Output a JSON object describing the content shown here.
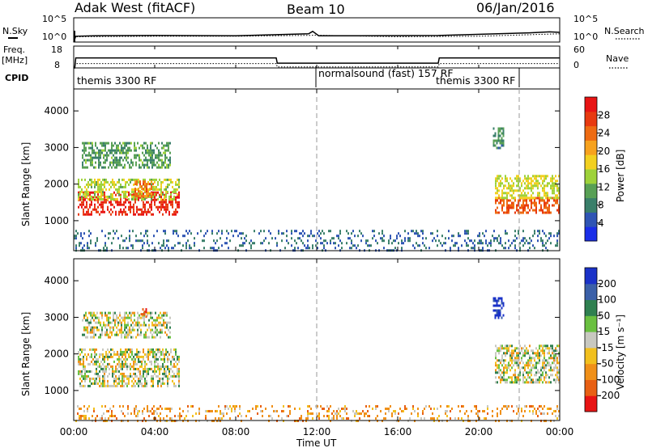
{
  "header": {
    "radar": "Adak West (fitACF)",
    "beam": "Beam 10",
    "date": "06/Jan/2016"
  },
  "sky_panel": {
    "left_label": "N.Sky",
    "right_label": "N.Search",
    "left_ticks": [
      "10^5",
      "10^0"
    ],
    "right_ticks": [
      "10^5",
      "10^0"
    ]
  },
  "freq_panel": {
    "left_label_line1": "Freq.",
    "left_label_line2": "[MHz]",
    "right_label": "Nave",
    "left_ticks": [
      "18",
      "8"
    ],
    "right_ticks": [
      "60",
      "0"
    ]
  },
  "cpid_panel": {
    "label": "CPID",
    "segments": [
      {
        "name": "themis 3300 RF",
        "start_hour": 0,
        "end_hour": 12
      },
      {
        "name": "normalsound (fast) 157 RF",
        "start_hour": 12,
        "end_hour": 18
      },
      {
        "name": "themis 3300 RF",
        "start_hour": 18,
        "end_hour": 24
      }
    ]
  },
  "power_panel": {
    "ylabel": "Slant Range [km]",
    "colorbar_label": "Power [dB]",
    "colorbar_ticks": [
      "28",
      "24",
      "20",
      "16",
      "12",
      "8",
      "4"
    ]
  },
  "velocity_panel": {
    "ylabel": "Slant Range [km]",
    "colorbar_label": "Velocity [m s⁻¹]",
    "colorbar_ticks": [
      "200",
      "100",
      "50",
      "15",
      "-15",
      "-50",
      "-100",
      "-200"
    ]
  },
  "x_axis": {
    "label": "Time UT",
    "ticks": [
      "00:00",
      "04:00",
      "08:00",
      "12:00",
      "16:00",
      "20:00",
      "00:00"
    ]
  },
  "colors": {
    "power_scale": [
      "#1a2ee8",
      "#2f55b4",
      "#3a7f6a",
      "#58a055",
      "#9ed23a",
      "#f2d020",
      "#f7a21e",
      "#ee6b12",
      "#e83a10",
      "#e81414"
    ],
    "velocity_scale": [
      "#1a32c8",
      "#3b60a8",
      "#2f8050",
      "#6ac040",
      "#c8c8c0",
      "#f2c01e",
      "#f09018",
      "#e86014",
      "#e81414"
    ]
  },
  "chart_data": [
    {
      "type": "line",
      "title": "Adak West (fitACF)",
      "description_panel": "N.Sky / N.Search",
      "x_range_hours": [
        0,
        24
      ],
      "series": [
        {
          "name": "N.Sky",
          "x": [
            0,
            0.1,
            1,
            4,
            8,
            11.6,
            11.8,
            12.1,
            14,
            18,
            22.5,
            23.5,
            24
          ],
          "y_log10": [
            0,
            1.2,
            1.3,
            1.35,
            1.3,
            1.7,
            2.2,
            1.3,
            1.3,
            1.35,
            1.9,
            2.1,
            2.0
          ]
        },
        {
          "name": "N.Search",
          "x": [
            0,
            4,
            8,
            12,
            16,
            20,
            24
          ],
          "y_log10": [
            1.1,
            1.2,
            1.2,
            1.4,
            1.1,
            1.2,
            1.7
          ]
        }
      ]
    },
    {
      "type": "line",
      "description_panel": "Freq. [MHz] / Nave",
      "x_range_hours": [
        0,
        24
      ],
      "ylim_freq": [
        8,
        18
      ],
      "ylim_nave": [
        0,
        60
      ],
      "series": [
        {
          "name": "Freq.",
          "x": [
            0,
            0.05,
            0.1,
            10.0,
            10.05,
            18.0,
            18.05,
            24
          ],
          "y": [
            8,
            8,
            12.6,
            12.6,
            10.2,
            10.2,
            12.6,
            12.6
          ]
        },
        {
          "name": "Nave",
          "x": [
            0,
            0.1,
            10.0,
            10.05,
            18.0,
            18.05,
            24
          ],
          "y": [
            0,
            12,
            12,
            3,
            3,
            12,
            12
          ]
        }
      ]
    },
    {
      "type": "heatmap",
      "title": "Power [dB]",
      "xlabel": "Time UT",
      "ylabel": "Slant Range [km]",
      "x_range_hours": [
        0,
        24
      ],
      "ylim_km": [
        180,
        4600
      ],
      "y_ticks": [
        1000,
        2000,
        3000,
        4000
      ],
      "value_range": [
        0,
        30
      ],
      "regions": [
        {
          "t0": 0.2,
          "t1": 5.2,
          "r0": 1150,
          "r1": 1800,
          "value": 27
        },
        {
          "t0": 0.2,
          "t1": 5.2,
          "r0": 1600,
          "r1": 2150,
          "value": 14
        },
        {
          "t0": 0.4,
          "t1": 4.8,
          "r0": 2450,
          "r1": 3150,
          "value": 10
        },
        {
          "t0": 3.0,
          "t1": 3.9,
          "r0": 1650,
          "r1": 2100,
          "value": 22
        },
        {
          "t0": 20.8,
          "t1": 24,
          "r0": 1250,
          "r1": 1650,
          "value": 24
        },
        {
          "t0": 20.8,
          "t1": 24,
          "r0": 1650,
          "r1": 2250,
          "value": 15
        },
        {
          "t0": 20.7,
          "t1": 21.2,
          "r0": 3000,
          "r1": 3550,
          "value": 8
        },
        {
          "t0": 0,
          "t1": 24,
          "r0": 180,
          "r1": 750,
          "value": 6
        }
      ]
    },
    {
      "type": "heatmap",
      "title": "Velocity [m s⁻¹]",
      "xlabel": "Time UT",
      "ylabel": "Slant Range [km]",
      "x_range_hours": [
        0,
        24
      ],
      "ylim_km": [
        180,
        4600
      ],
      "y_ticks": [
        1000,
        2000,
        3000,
        4000
      ],
      "value_range": [
        -250,
        250
      ],
      "regions": [
        {
          "t0": 0.2,
          "t1": 5.2,
          "r0": 1150,
          "r1": 2150,
          "value": 0
        },
        {
          "t0": 0.4,
          "t1": 4.8,
          "r0": 2450,
          "r1": 3150,
          "value": 0
        },
        {
          "t0": 3.3,
          "t1": 3.6,
          "r0": 3050,
          "r1": 3250,
          "value": -150
        },
        {
          "t0": 20.8,
          "t1": 24,
          "r0": 1250,
          "r1": 2250,
          "value": 0
        },
        {
          "t0": 20.7,
          "t1": 21.2,
          "r0": 3000,
          "r1": 3550,
          "value": 180
        },
        {
          "t0": 0,
          "t1": 24,
          "r0": 180,
          "r1": 600,
          "value": -45
        }
      ]
    }
  ]
}
